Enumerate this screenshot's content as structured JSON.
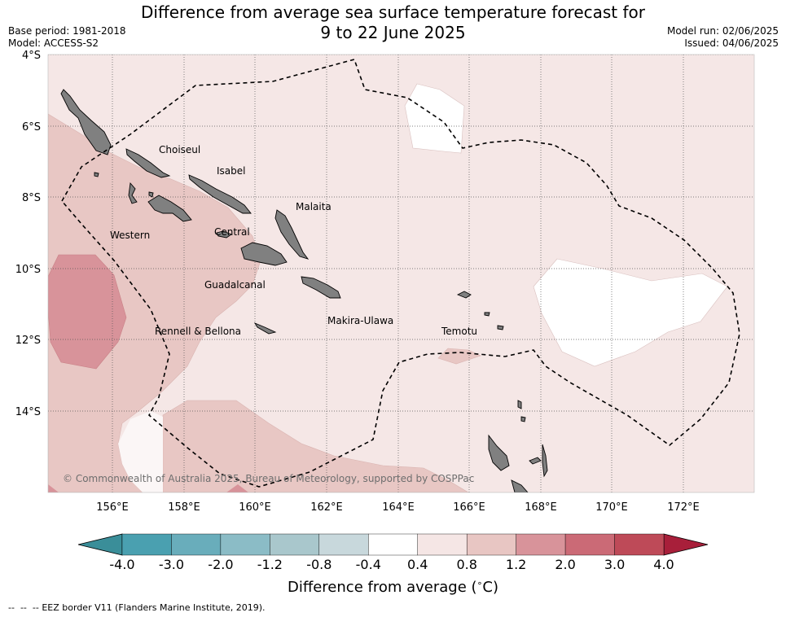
{
  "title": {
    "line1": "Difference from average sea surface temperature forecast for",
    "line2": "9 to 22 June 2025"
  },
  "meta": {
    "base_period": "Base period: 1981-2018",
    "model": "Model: ACCESS-S2",
    "model_run": "Model run: 02/06/2025",
    "issued": "Issued: 04/06/2025"
  },
  "map": {
    "lat_labels": [
      "4°S",
      "6°S",
      "8°S",
      "10°S",
      "12°S",
      "14°S"
    ],
    "lon_labels": [
      "156°E",
      "158°E",
      "160°E",
      "162°E",
      "164°E",
      "166°E",
      "168°E",
      "170°E",
      "172°E"
    ],
    "provinces": [
      "Choiseul",
      "Isabel",
      "Malaita",
      "Western",
      "Central",
      "Guadalcanal",
      "Makira-Ulawa",
      "Rennell & Bellona",
      "Temotu"
    ],
    "copyright": "© Commonwealth of Australia 2025, Bureau of Meteorology, supported by COSPPac",
    "land_color": "#808080"
  },
  "colorbar": {
    "ticks": [
      "-4.0",
      "-3.0",
      "-2.0",
      "-1.2",
      "-0.8",
      "-0.4",
      "0.4",
      "0.8",
      "1.2",
      "2.0",
      "3.0",
      "4.0"
    ],
    "colors": [
      "#4aa0b0",
      "#69adbb",
      "#8bbcc6",
      "#a9c7cc",
      "#c8d8dc",
      "#ffffff",
      "#f5e6e5",
      "#e8c6c3",
      "#d8939a",
      "#cb6a76",
      "#be4a58"
    ],
    "under_color": "#3a8e99",
    "over_color": "#a81f3a",
    "title": "Difference from average ($^\\circ$C)"
  },
  "legend": {
    "eez_label": "-- EEZ border V11 (Flanders Marine Institute, 2019)."
  }
}
